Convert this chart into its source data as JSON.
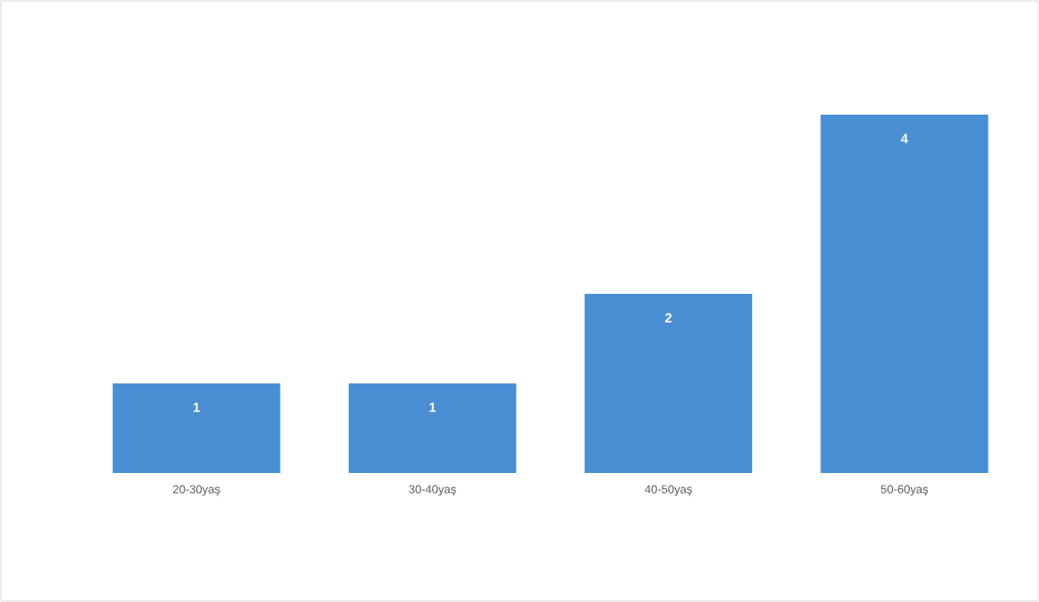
{
  "chart_data": {
    "type": "bar",
    "categories": [
      "20-30yaş",
      "30-40yaş",
      "40-50yaş",
      "50-60yaş"
    ],
    "values": [
      1,
      1,
      2,
      4
    ],
    "color": "#4a8fd4",
    "data_labels": true
  }
}
